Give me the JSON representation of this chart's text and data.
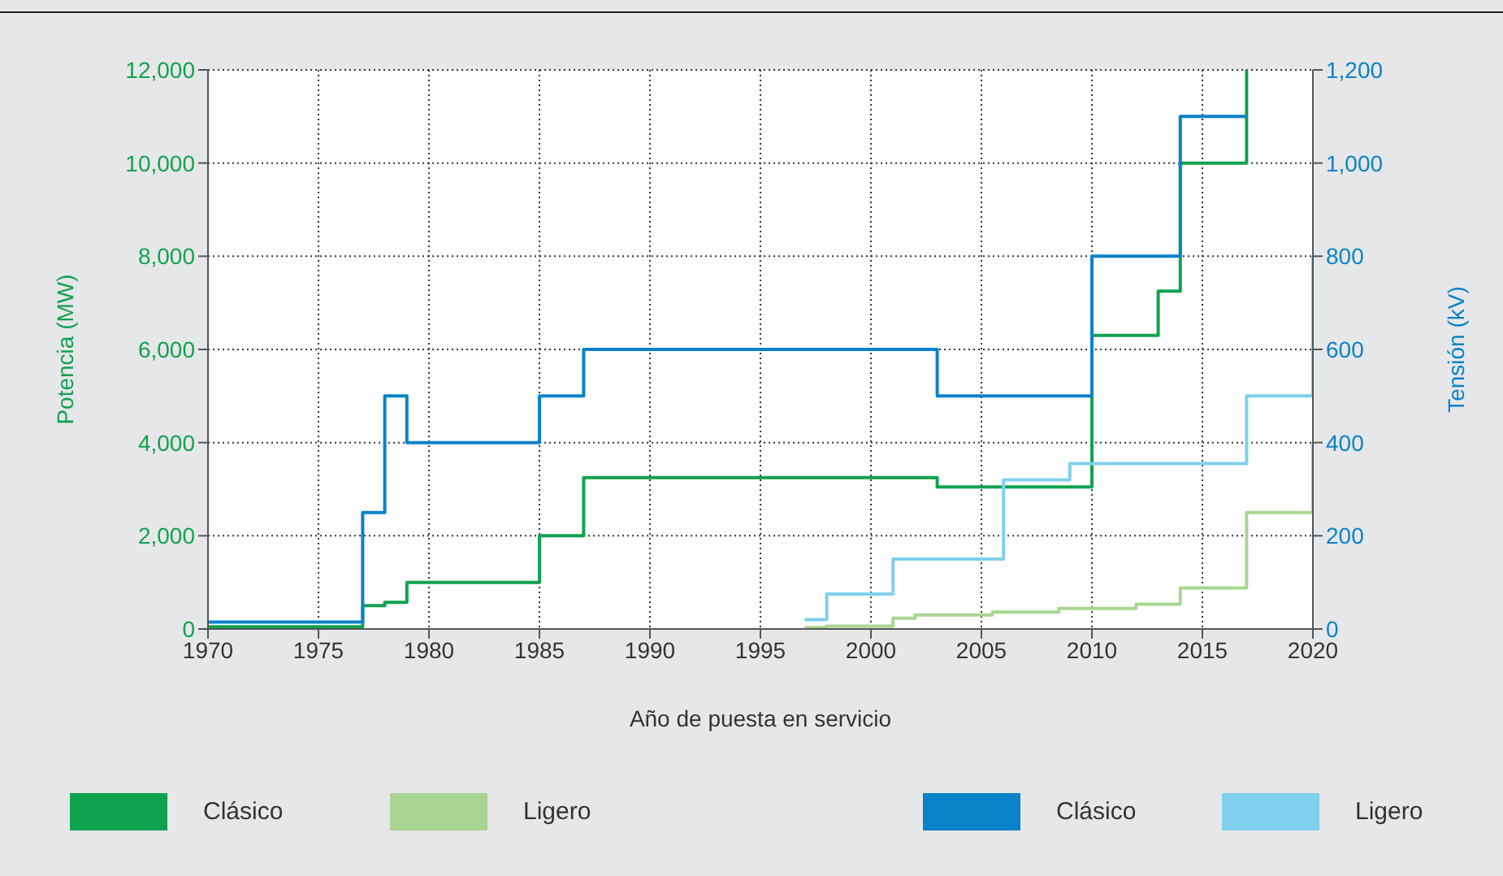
{
  "chart_data": {
    "type": "step",
    "xlabel": "Año de puesta en servicio",
    "ylabel": "Potencia (MW)",
    "y2label": "Tensión (kV)",
    "xlim": [
      1970,
      2020
    ],
    "xticks": [
      1970,
      1975,
      1980,
      1985,
      1990,
      1995,
      2000,
      2005,
      2010,
      2015,
      2020
    ],
    "ylim": [
      0,
      12000
    ],
    "yticks": [
      0,
      {
        "value": 2000,
        "label": "2,000"
      },
      {
        "value": 4000,
        "label": "4,000"
      },
      {
        "value": 6000,
        "label": "6,000"
      },
      {
        "value": 8000,
        "label": "8,000"
      },
      {
        "value": 10000,
        "label": "10,000"
      },
      {
        "value": 12000,
        "label": "12,000"
      }
    ],
    "y2lim": [
      0,
      1200
    ],
    "y2ticks": [
      0,
      200,
      400,
      600,
      800,
      {
        "value": 1000,
        "label": "1,000"
      },
      {
        "value": 1200,
        "label": "1,200"
      }
    ],
    "grid": true,
    "legend": "bottom",
    "series": [
      {
        "name": "Clásico",
        "color": "#11a24f",
        "x": [
          1970,
          1977,
          1978,
          1979,
          1985,
          1987,
          2003,
          2010,
          2013,
          2014,
          2017
        ],
        "values": [
          50,
          500,
          570,
          1000,
          2000,
          3250,
          3050,
          6300,
          7250,
          10000,
          12000
        ]
      },
      {
        "name": "Ligero",
        "color": "#a9d592",
        "x": [
          1997,
          1998,
          2001,
          2002,
          2005.5,
          2008.5,
          2012,
          2014,
          2017,
          2020
        ],
        "values": [
          30,
          60,
          230,
          300,
          360,
          440,
          530,
          880,
          2500,
          4000
        ]
      },
      {
        "name": "Clásico",
        "color": "#0a82c8",
        "axis": "y2",
        "x": [
          1970,
          1977,
          1978,
          1979,
          1985,
          1987,
          2003,
          2010,
          2014,
          2017
        ],
        "values": [
          15,
          250,
          500,
          400,
          500,
          600,
          500,
          800,
          1100,
          1100
        ]
      },
      {
        "name": "Ligero",
        "color": "#7fd0ec",
        "axis": "y2",
        "x": [
          1997,
          1998,
          2001,
          2006,
          2009,
          2017,
          2020
        ],
        "values": [
          20,
          75,
          150,
          320,
          355,
          500,
          800
        ]
      }
    ]
  }
}
